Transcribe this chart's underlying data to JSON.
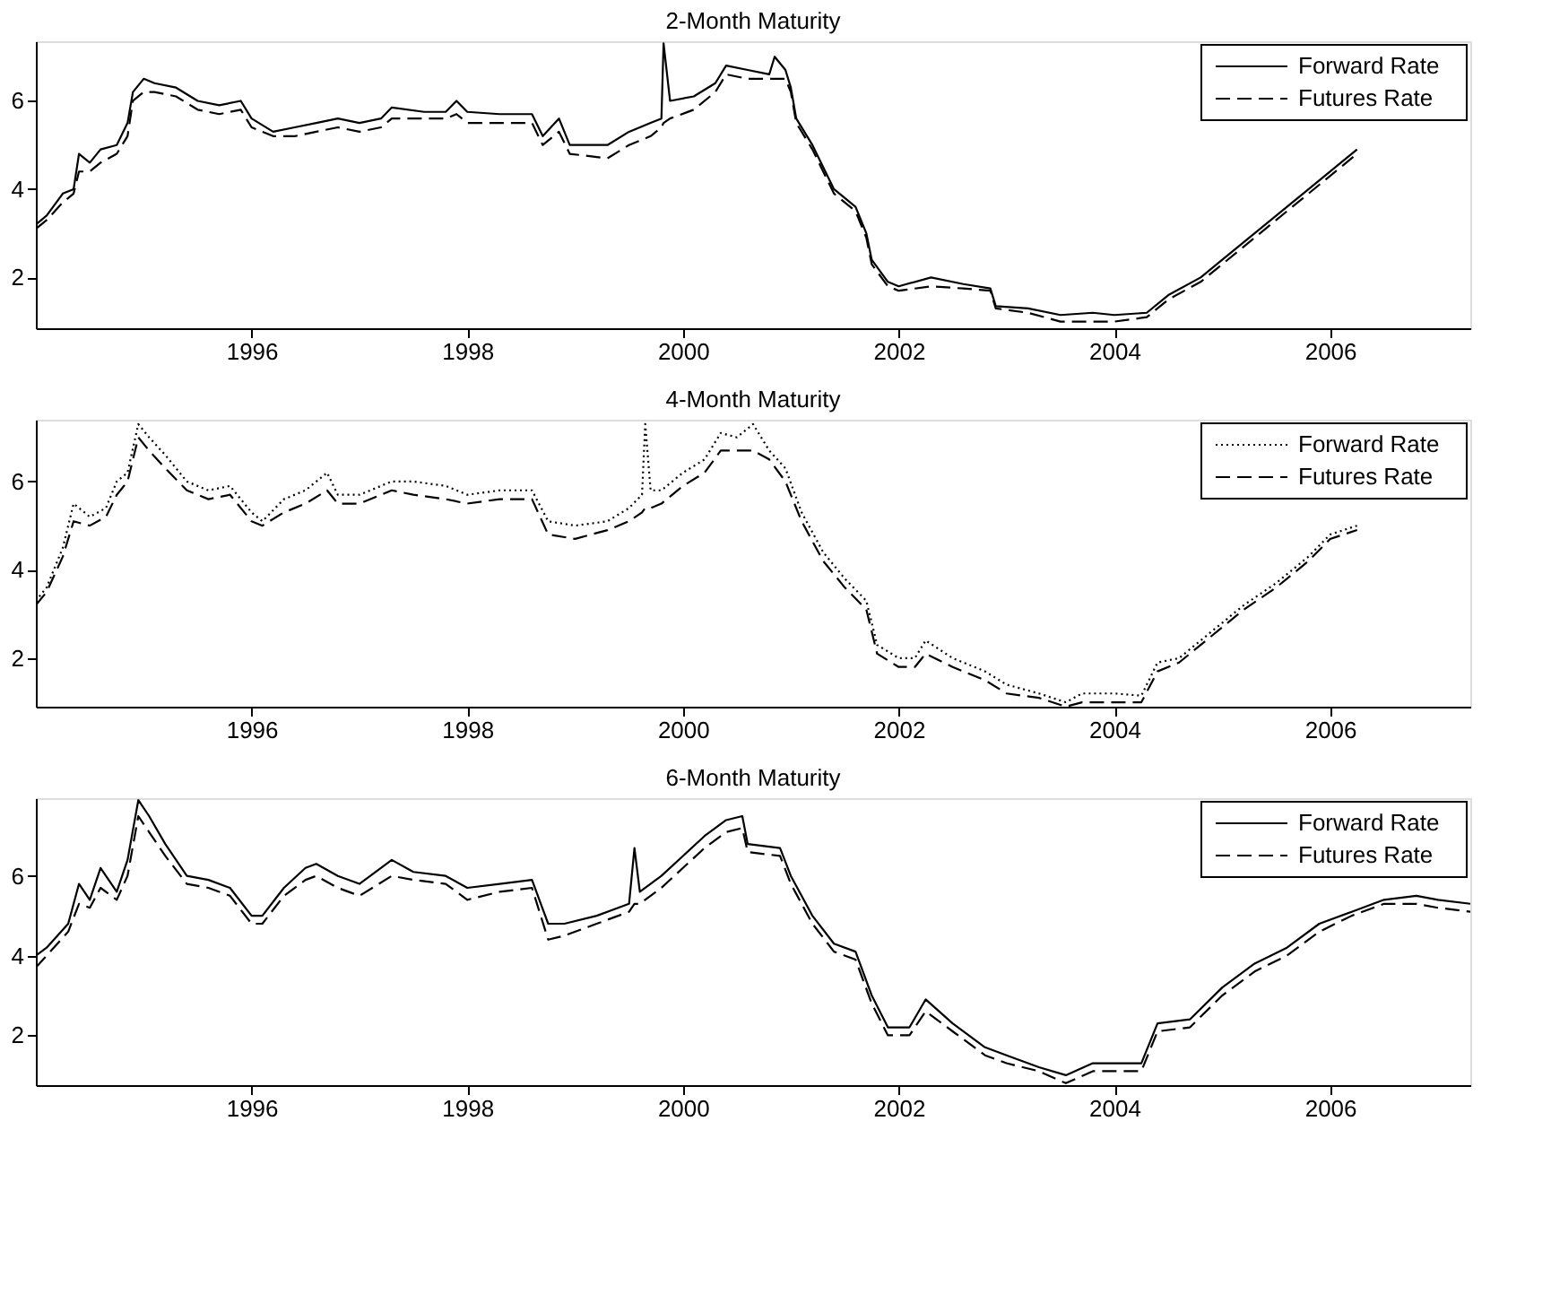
{
  "chart_data": [
    {
      "type": "line",
      "title": "2-Month Maturity",
      "xlim": [
        1994.0,
        2007.3
      ],
      "xticks": [
        1996,
        1998,
        2000,
        2002,
        2004,
        2006
      ],
      "ylim": [
        0.85,
        7.35
      ],
      "yticks": [
        2,
        4,
        6
      ],
      "grid": false,
      "legend": "top right",
      "x": [
        1994.0,
        1994.1,
        1994.25,
        1994.35,
        1994.4,
        1994.5,
        1994.6,
        1994.75,
        1994.85,
        1994.9,
        1995.0,
        1995.1,
        1995.3,
        1995.5,
        1995.7,
        1995.9,
        1996.0,
        1996.2,
        1996.4,
        1996.6,
        1996.8,
        1997.0,
        1997.2,
        1997.3,
        1997.6,
        1997.8,
        1997.9,
        1998.0,
        1998.3,
        1998.6,
        1998.7,
        1998.85,
        1998.95,
        1999.3,
        1999.5,
        1999.7,
        1999.8,
        1999.82,
        1999.88,
        2000.1,
        2000.3,
        2000.4,
        2000.6,
        2000.8,
        2000.85,
        2000.95,
        2001.0,
        2001.05,
        2001.2,
        2001.4,
        2001.6,
        2001.7,
        2001.75,
        2001.9,
        2002.0,
        2002.3,
        2002.6,
        2002.85,
        2002.9,
        2003.2,
        2003.5,
        2003.8,
        2004.0,
        2004.3,
        2004.5,
        2004.8,
        2005.0,
        2005.3,
        2005.6,
        2005.9,
        2006.1,
        2006.25
      ],
      "series": [
        {
          "name": "Forward Rate",
          "color": "#000000",
          "line_style": "solid",
          "values": [
            3.2,
            3.4,
            3.9,
            4.0,
            4.8,
            4.6,
            4.9,
            5.0,
            5.5,
            6.2,
            6.5,
            6.4,
            6.3,
            6.0,
            5.9,
            6.0,
            5.6,
            5.3,
            5.4,
            5.5,
            5.6,
            5.5,
            5.6,
            5.85,
            5.75,
            5.75,
            6.0,
            5.75,
            5.7,
            5.7,
            5.2,
            5.6,
            5.0,
            5.0,
            5.3,
            5.5,
            5.6,
            7.3,
            6.0,
            6.1,
            6.4,
            6.8,
            6.7,
            6.6,
            7.0,
            6.7,
            6.3,
            5.6,
            5.0,
            4.0,
            3.6,
            3.0,
            2.4,
            1.9,
            1.8,
            2.0,
            1.85,
            1.75,
            1.35,
            1.3,
            1.15,
            1.2,
            1.15,
            1.2,
            1.6,
            2.0,
            2.4,
            3.0,
            3.6,
            4.2,
            4.6,
            4.9
          ]
        },
        {
          "name": "Futures Rate",
          "color": "#000000",
          "line_style": "dashed",
          "values": [
            3.1,
            3.3,
            3.7,
            3.9,
            4.4,
            4.4,
            4.6,
            4.8,
            5.2,
            6.0,
            6.2,
            6.2,
            6.1,
            5.8,
            5.7,
            5.8,
            5.4,
            5.2,
            5.2,
            5.3,
            5.4,
            5.3,
            5.4,
            5.6,
            5.6,
            5.6,
            5.7,
            5.5,
            5.5,
            5.5,
            5.0,
            5.3,
            4.8,
            4.7,
            5.0,
            5.2,
            5.4,
            5.5,
            5.6,
            5.8,
            6.2,
            6.6,
            6.5,
            6.5,
            6.5,
            6.5,
            6.2,
            5.5,
            4.9,
            3.9,
            3.5,
            2.9,
            2.3,
            1.8,
            1.7,
            1.8,
            1.75,
            1.7,
            1.3,
            1.2,
            1.0,
            1.0,
            1.0,
            1.1,
            1.5,
            1.9,
            2.3,
            2.9,
            3.5,
            4.1,
            4.5,
            4.8
          ]
        }
      ]
    },
    {
      "type": "line",
      "title": "4-Month Maturity",
      "xlim": [
        1994.0,
        2007.3
      ],
      "xticks": [
        1996,
        1998,
        2000,
        2002,
        2004,
        2006
      ],
      "ylim": [
        0.9,
        7.4
      ],
      "yticks": [
        2,
        4,
        6
      ],
      "grid": false,
      "legend": "top right",
      "x": [
        1994.0,
        1994.1,
        1994.25,
        1994.35,
        1994.5,
        1994.65,
        1994.75,
        1994.85,
        1994.95,
        1995.05,
        1995.2,
        1995.4,
        1995.6,
        1995.8,
        1996.0,
        1996.1,
        1996.3,
        1996.5,
        1996.7,
        1996.8,
        1997.0,
        1997.3,
        1997.5,
        1997.8,
        1998.0,
        1998.3,
        1998.6,
        1998.75,
        1999.0,
        1999.3,
        1999.5,
        1999.62,
        1999.65,
        1999.7,
        1999.8,
        2000.0,
        2000.2,
        2000.35,
        2000.5,
        2000.65,
        2000.8,
        2000.95,
        2001.1,
        2001.3,
        2001.5,
        2001.7,
        2001.8,
        2002.0,
        2002.15,
        2002.25,
        2002.5,
        2002.8,
        2003.0,
        2003.3,
        2003.55,
        2003.7,
        2004.0,
        2004.25,
        2004.4,
        2004.6,
        2004.9,
        2005.2,
        2005.5,
        2005.8,
        2006.0,
        2006.25
      ],
      "series": [
        {
          "name": "Forward Rate",
          "color": "#000000",
          "line_style": "dotted",
          "values": [
            3.3,
            3.6,
            4.5,
            5.5,
            5.2,
            5.4,
            6.0,
            6.2,
            7.3,
            7.0,
            6.6,
            6.0,
            5.8,
            5.9,
            5.3,
            5.1,
            5.6,
            5.8,
            6.2,
            5.7,
            5.7,
            6.0,
            6.0,
            5.9,
            5.7,
            5.8,
            5.8,
            5.1,
            5.0,
            5.1,
            5.4,
            5.7,
            7.3,
            5.8,
            5.8,
            6.2,
            6.5,
            7.1,
            7.0,
            7.3,
            6.7,
            6.3,
            5.3,
            4.4,
            3.8,
            3.3,
            2.3,
            2.0,
            2.0,
            2.4,
            2.0,
            1.7,
            1.4,
            1.2,
            1.0,
            1.2,
            1.2,
            1.15,
            1.9,
            2.0,
            2.6,
            3.2,
            3.7,
            4.3,
            4.8,
            5.0
          ]
        },
        {
          "name": "Futures Rate",
          "color": "#000000",
          "line_style": "dashed",
          "values": [
            3.2,
            3.5,
            4.3,
            5.1,
            5.0,
            5.2,
            5.7,
            6.0,
            7.0,
            6.7,
            6.3,
            5.8,
            5.6,
            5.7,
            5.1,
            5.0,
            5.3,
            5.5,
            5.8,
            5.5,
            5.5,
            5.8,
            5.7,
            5.6,
            5.5,
            5.6,
            5.6,
            4.8,
            4.7,
            4.9,
            5.1,
            5.3,
            5.4,
            5.4,
            5.5,
            5.9,
            6.2,
            6.7,
            6.7,
            6.7,
            6.5,
            6.0,
            5.1,
            4.2,
            3.6,
            3.1,
            2.1,
            1.8,
            1.8,
            2.1,
            1.8,
            1.5,
            1.2,
            1.1,
            0.9,
            1.0,
            1.0,
            1.0,
            1.7,
            1.9,
            2.5,
            3.1,
            3.6,
            4.2,
            4.7,
            4.9
          ]
        }
      ]
    },
    {
      "type": "line",
      "title": "6-Month Maturity",
      "xlim": [
        1994.0,
        2007.3
      ],
      "xticks": [
        1996,
        1998,
        2000,
        2002,
        2004,
        2006
      ],
      "ylim": [
        0.75,
        7.95
      ],
      "yticks": [
        2,
        4,
        6
      ],
      "grid": false,
      "legend": "top right",
      "x": [
        1994.0,
        1994.1,
        1994.3,
        1994.4,
        1994.5,
        1994.6,
        1994.75,
        1994.85,
        1994.95,
        1995.05,
        1995.2,
        1995.4,
        1995.6,
        1995.8,
        1996.0,
        1996.1,
        1996.3,
        1996.5,
        1996.6,
        1996.8,
        1997.0,
        1997.3,
        1997.5,
        1997.8,
        1998.0,
        1998.3,
        1998.6,
        1998.75,
        1998.9,
        1999.2,
        1999.5,
        1999.55,
        1999.6,
        1999.8,
        2000.0,
        2000.2,
        2000.4,
        2000.55,
        2000.6,
        2000.9,
        2001.0,
        2001.2,
        2001.4,
        2001.6,
        2001.75,
        2001.9,
        2002.1,
        2002.25,
        2002.5,
        2002.8,
        2003.0,
        2003.3,
        2003.55,
        2003.8,
        2004.0,
        2004.25,
        2004.4,
        2004.7,
        2005.0,
        2005.3,
        2005.6,
        2005.9,
        2006.2,
        2006.5,
        2006.8,
        2007.0,
        2007.3
      ],
      "series": [
        {
          "name": "Forward Rate",
          "color": "#000000",
          "line_style": "solid",
          "values": [
            4.0,
            4.2,
            4.8,
            5.8,
            5.4,
            6.2,
            5.6,
            6.4,
            7.9,
            7.5,
            6.8,
            6.0,
            5.9,
            5.7,
            5.0,
            5.0,
            5.7,
            6.2,
            6.3,
            6.0,
            5.8,
            6.4,
            6.1,
            6.0,
            5.7,
            5.8,
            5.9,
            4.8,
            4.8,
            5.0,
            5.3,
            6.7,
            5.6,
            6.0,
            6.5,
            7.0,
            7.4,
            7.5,
            6.8,
            6.7,
            6.0,
            5.0,
            4.3,
            4.1,
            3.0,
            2.2,
            2.2,
            2.9,
            2.3,
            1.7,
            1.5,
            1.2,
            1.0,
            1.3,
            1.3,
            1.3,
            2.3,
            2.4,
            3.2,
            3.8,
            4.2,
            4.8,
            5.1,
            5.4,
            5.5,
            5.4,
            5.3
          ]
        },
        {
          "name": "Futures Rate",
          "color": "#000000",
          "line_style": "dashed",
          "values": [
            3.7,
            4.0,
            4.6,
            5.3,
            5.2,
            5.7,
            5.4,
            6.0,
            7.5,
            7.1,
            6.5,
            5.8,
            5.7,
            5.5,
            4.8,
            4.8,
            5.5,
            5.9,
            6.0,
            5.7,
            5.5,
            6.0,
            5.9,
            5.8,
            5.4,
            5.6,
            5.7,
            4.4,
            4.5,
            4.8,
            5.1,
            5.3,
            5.3,
            5.7,
            6.2,
            6.7,
            7.1,
            7.2,
            6.6,
            6.5,
            5.8,
            4.8,
            4.1,
            3.9,
            2.8,
            2.0,
            2.0,
            2.6,
            2.1,
            1.5,
            1.3,
            1.1,
            0.8,
            1.1,
            1.1,
            1.1,
            2.1,
            2.2,
            3.0,
            3.6,
            4.0,
            4.6,
            5.0,
            5.3,
            5.3,
            5.2,
            5.1
          ]
        }
      ]
    }
  ]
}
